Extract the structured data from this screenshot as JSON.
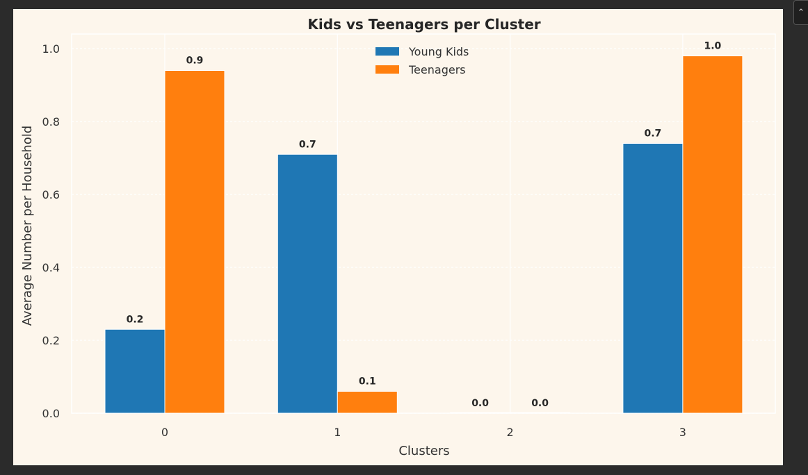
{
  "chart_data": {
    "type": "bar",
    "title": "Kids vs Teenagers per Cluster",
    "xlabel": "Clusters",
    "ylabel": "Average Number per Household",
    "categories": [
      "0",
      "1",
      "2",
      "3"
    ],
    "series": [
      {
        "name": "Young Kids",
        "color": "#1f77b4",
        "values": [
          0.23,
          0.71,
          0.0,
          0.74
        ],
        "labels": [
          "0.2",
          "0.7",
          "0.0",
          "0.7"
        ]
      },
      {
        "name": "Teenagers",
        "color": "#ff7f0e",
        "values": [
          0.94,
          0.06,
          0.0,
          0.98
        ],
        "labels": [
          "0.9",
          "0.1",
          "0.0",
          "1.0"
        ]
      }
    ],
    "ylim": [
      0,
      1.04
    ],
    "yticks": [
      "0.0",
      "0.2",
      "0.4",
      "0.6",
      "0.8",
      "1.0"
    ],
    "grid": true,
    "legend_position": "top-center"
  },
  "window": {
    "scroll_up_glyph": "⌃"
  }
}
